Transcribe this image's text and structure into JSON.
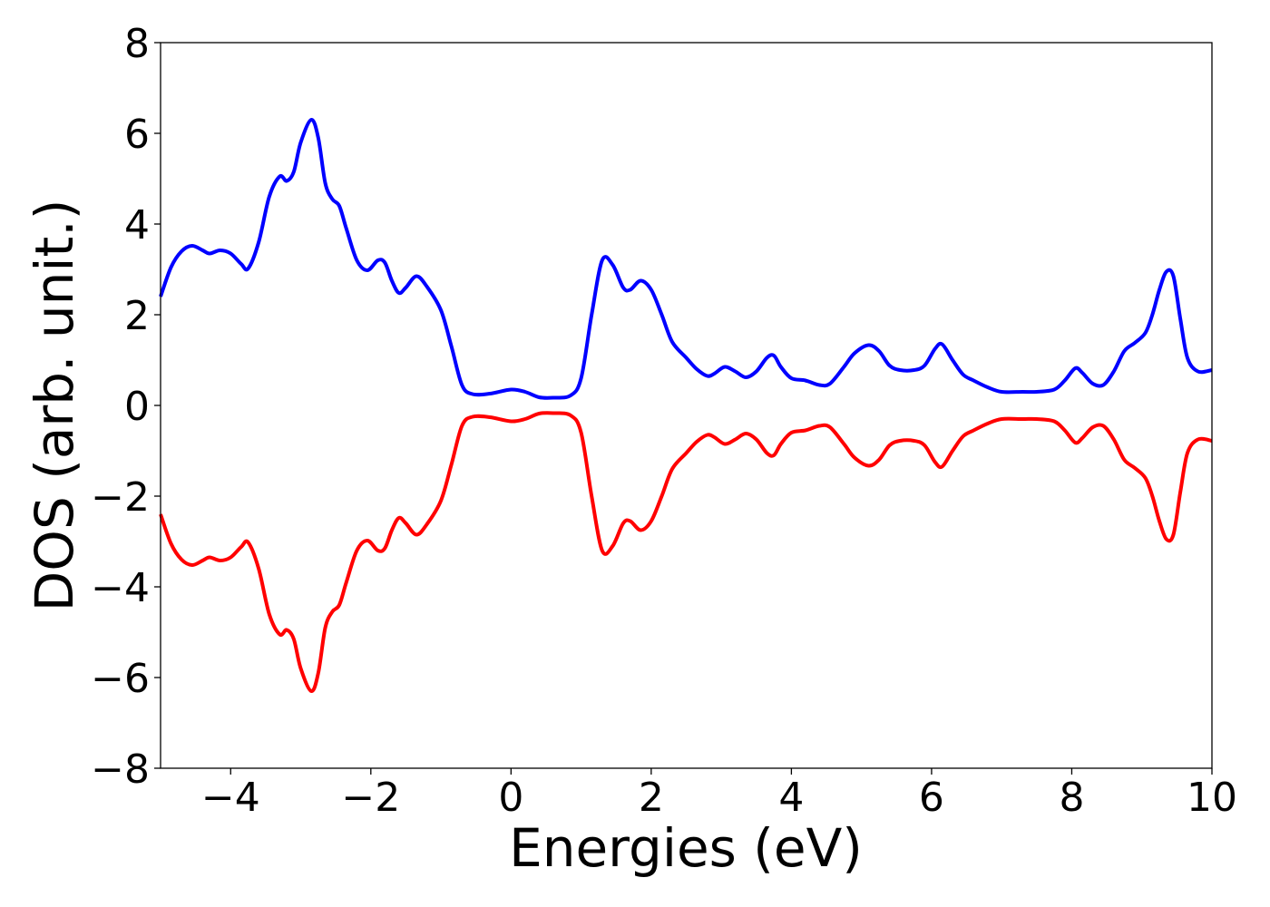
{
  "chart_data": {
    "type": "line",
    "xlabel": "Energies (eV)",
    "ylabel": "DOS (arb. unit.)",
    "xlim": [
      -5,
      10
    ],
    "ylim": [
      -8,
      8
    ],
    "xticks": [
      -4,
      -2,
      0,
      2,
      4,
      6,
      8,
      10
    ],
    "xtick_labels": [
      "−4",
      "−2",
      "0",
      "2",
      "4",
      "6",
      "8",
      "10"
    ],
    "yticks": [
      -8,
      -6,
      -4,
      -2,
      0,
      2,
      4,
      6,
      8
    ],
    "ytick_labels": [
      "−8",
      "−6",
      "−4",
      "−2",
      "0",
      "2",
      "4",
      "6",
      "8"
    ],
    "grid": false,
    "series": [
      {
        "color": "#0000ff",
        "points": [
          [
            -5.0,
            2.4
          ],
          [
            -4.85,
            3.05
          ],
          [
            -4.7,
            3.4
          ],
          [
            -4.55,
            3.52
          ],
          [
            -4.4,
            3.42
          ],
          [
            -4.3,
            3.35
          ],
          [
            -4.15,
            3.42
          ],
          [
            -4.0,
            3.35
          ],
          [
            -3.85,
            3.12
          ],
          [
            -3.75,
            3.02
          ],
          [
            -3.6,
            3.6
          ],
          [
            -3.45,
            4.6
          ],
          [
            -3.3,
            5.05
          ],
          [
            -3.2,
            4.95
          ],
          [
            -3.1,
            5.15
          ],
          [
            -3.0,
            5.8
          ],
          [
            -2.85,
            6.3
          ],
          [
            -2.75,
            5.9
          ],
          [
            -2.65,
            4.9
          ],
          [
            -2.55,
            4.55
          ],
          [
            -2.45,
            4.4
          ],
          [
            -2.35,
            3.9
          ],
          [
            -2.2,
            3.2
          ],
          [
            -2.05,
            2.98
          ],
          [
            -1.9,
            3.2
          ],
          [
            -1.8,
            3.15
          ],
          [
            -1.7,
            2.75
          ],
          [
            -1.6,
            2.48
          ],
          [
            -1.5,
            2.6
          ],
          [
            -1.35,
            2.85
          ],
          [
            -1.2,
            2.62
          ],
          [
            -1.0,
            2.1
          ],
          [
            -0.85,
            1.3
          ],
          [
            -0.7,
            0.45
          ],
          [
            -0.55,
            0.25
          ],
          [
            -0.3,
            0.26
          ],
          [
            0.0,
            0.35
          ],
          [
            0.2,
            0.3
          ],
          [
            0.4,
            0.18
          ],
          [
            0.6,
            0.17
          ],
          [
            0.85,
            0.22
          ],
          [
            1.0,
            0.6
          ],
          [
            1.15,
            2.0
          ],
          [
            1.3,
            3.2
          ],
          [
            1.45,
            3.1
          ],
          [
            1.6,
            2.6
          ],
          [
            1.7,
            2.55
          ],
          [
            1.85,
            2.75
          ],
          [
            2.0,
            2.55
          ],
          [
            2.15,
            2.0
          ],
          [
            2.3,
            1.4
          ],
          [
            2.5,
            1.05
          ],
          [
            2.65,
            0.8
          ],
          [
            2.8,
            0.65
          ],
          [
            2.9,
            0.7
          ],
          [
            3.05,
            0.85
          ],
          [
            3.2,
            0.75
          ],
          [
            3.35,
            0.62
          ],
          [
            3.5,
            0.75
          ],
          [
            3.65,
            1.05
          ],
          [
            3.75,
            1.1
          ],
          [
            3.85,
            0.85
          ],
          [
            4.0,
            0.6
          ],
          [
            4.2,
            0.55
          ],
          [
            4.4,
            0.45
          ],
          [
            4.55,
            0.48
          ],
          [
            4.75,
            0.85
          ],
          [
            4.9,
            1.15
          ],
          [
            5.1,
            1.33
          ],
          [
            5.25,
            1.2
          ],
          [
            5.4,
            0.88
          ],
          [
            5.55,
            0.78
          ],
          [
            5.75,
            0.78
          ],
          [
            5.9,
            0.88
          ],
          [
            6.05,
            1.25
          ],
          [
            6.15,
            1.35
          ],
          [
            6.3,
            1.0
          ],
          [
            6.45,
            0.68
          ],
          [
            6.6,
            0.55
          ],
          [
            6.8,
            0.4
          ],
          [
            7.0,
            0.3
          ],
          [
            7.3,
            0.3
          ],
          [
            7.5,
            0.3
          ],
          [
            7.75,
            0.35
          ],
          [
            7.9,
            0.55
          ],
          [
            8.05,
            0.82
          ],
          [
            8.15,
            0.72
          ],
          [
            8.3,
            0.48
          ],
          [
            8.45,
            0.45
          ],
          [
            8.6,
            0.75
          ],
          [
            8.75,
            1.2
          ],
          [
            8.9,
            1.38
          ],
          [
            9.05,
            1.6
          ],
          [
            9.15,
            2.0
          ],
          [
            9.25,
            2.55
          ],
          [
            9.35,
            2.95
          ],
          [
            9.45,
            2.85
          ],
          [
            9.55,
            1.9
          ],
          [
            9.65,
            1.05
          ],
          [
            9.8,
            0.75
          ],
          [
            10.0,
            0.78
          ]
        ]
      },
      {
        "color": "#ff0000",
        "points": [
          [
            -5.0,
            -2.4
          ],
          [
            -4.85,
            -3.05
          ],
          [
            -4.7,
            -3.4
          ],
          [
            -4.55,
            -3.52
          ],
          [
            -4.4,
            -3.42
          ],
          [
            -4.3,
            -3.35
          ],
          [
            -4.15,
            -3.42
          ],
          [
            -4.0,
            -3.35
          ],
          [
            -3.85,
            -3.12
          ],
          [
            -3.75,
            -3.02
          ],
          [
            -3.6,
            -3.6
          ],
          [
            -3.45,
            -4.6
          ],
          [
            -3.3,
            -5.05
          ],
          [
            -3.2,
            -4.95
          ],
          [
            -3.1,
            -5.15
          ],
          [
            -3.0,
            -5.8
          ],
          [
            -2.85,
            -6.3
          ],
          [
            -2.75,
            -5.9
          ],
          [
            -2.65,
            -4.9
          ],
          [
            -2.55,
            -4.55
          ],
          [
            -2.45,
            -4.4
          ],
          [
            -2.35,
            -3.9
          ],
          [
            -2.2,
            -3.2
          ],
          [
            -2.05,
            -2.98
          ],
          [
            -1.9,
            -3.2
          ],
          [
            -1.8,
            -3.15
          ],
          [
            -1.7,
            -2.75
          ],
          [
            -1.6,
            -2.48
          ],
          [
            -1.5,
            -2.6
          ],
          [
            -1.35,
            -2.85
          ],
          [
            -1.2,
            -2.62
          ],
          [
            -1.0,
            -2.1
          ],
          [
            -0.85,
            -1.3
          ],
          [
            -0.7,
            -0.45
          ],
          [
            -0.55,
            -0.25
          ],
          [
            -0.3,
            -0.26
          ],
          [
            0.0,
            -0.35
          ],
          [
            0.2,
            -0.3
          ],
          [
            0.4,
            -0.18
          ],
          [
            0.6,
            -0.17
          ],
          [
            0.85,
            -0.22
          ],
          [
            1.0,
            -0.6
          ],
          [
            1.15,
            -2.0
          ],
          [
            1.3,
            -3.2
          ],
          [
            1.45,
            -3.1
          ],
          [
            1.6,
            -2.6
          ],
          [
            1.7,
            -2.55
          ],
          [
            1.85,
            -2.75
          ],
          [
            2.0,
            -2.55
          ],
          [
            2.15,
            -2.0
          ],
          [
            2.3,
            -1.4
          ],
          [
            2.5,
            -1.05
          ],
          [
            2.65,
            -0.8
          ],
          [
            2.8,
            -0.65
          ],
          [
            2.9,
            -0.7
          ],
          [
            3.05,
            -0.85
          ],
          [
            3.2,
            -0.75
          ],
          [
            3.35,
            -0.62
          ],
          [
            3.5,
            -0.75
          ],
          [
            3.65,
            -1.05
          ],
          [
            3.75,
            -1.1
          ],
          [
            3.85,
            -0.85
          ],
          [
            4.0,
            -0.6
          ],
          [
            4.2,
            -0.55
          ],
          [
            4.4,
            -0.45
          ],
          [
            4.55,
            -0.48
          ],
          [
            4.75,
            -0.85
          ],
          [
            4.9,
            -1.15
          ],
          [
            5.1,
            -1.33
          ],
          [
            5.25,
            -1.2
          ],
          [
            5.4,
            -0.88
          ],
          [
            5.55,
            -0.78
          ],
          [
            5.75,
            -0.78
          ],
          [
            5.9,
            -0.88
          ],
          [
            6.05,
            -1.25
          ],
          [
            6.15,
            -1.35
          ],
          [
            6.3,
            -1.0
          ],
          [
            6.45,
            -0.68
          ],
          [
            6.6,
            -0.55
          ],
          [
            6.8,
            -0.4
          ],
          [
            7.0,
            -0.3
          ],
          [
            7.3,
            -0.3
          ],
          [
            7.5,
            -0.3
          ],
          [
            7.75,
            -0.35
          ],
          [
            7.9,
            -0.55
          ],
          [
            8.05,
            -0.82
          ],
          [
            8.15,
            -0.72
          ],
          [
            8.3,
            -0.48
          ],
          [
            8.45,
            -0.45
          ],
          [
            8.6,
            -0.75
          ],
          [
            8.75,
            -1.2
          ],
          [
            8.9,
            -1.38
          ],
          [
            9.05,
            -1.6
          ],
          [
            9.15,
            -2.0
          ],
          [
            9.25,
            -2.55
          ],
          [
            9.35,
            -2.95
          ],
          [
            9.45,
            -2.85
          ],
          [
            9.55,
            -1.9
          ],
          [
            9.65,
            -1.05
          ],
          [
            9.8,
            -0.75
          ],
          [
            10.0,
            -0.78
          ]
        ]
      }
    ]
  }
}
